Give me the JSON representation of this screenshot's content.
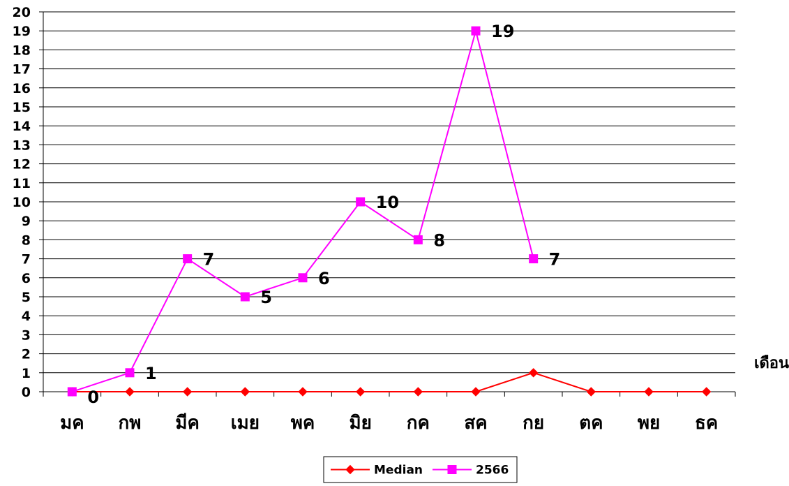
{
  "chart_data": {
    "type": "line",
    "categories": [
      "มค",
      "กพ",
      "มีค",
      "เมย",
      "พค",
      "มิย",
      "กค",
      "สค",
      "กย",
      "ตค",
      "พย",
      "ธค"
    ],
    "series": [
      {
        "name": "Median",
        "values": [
          0,
          0,
          0,
          0,
          0,
          0,
          0,
          0,
          1,
          0,
          0,
          0
        ],
        "color": "#ff0000",
        "marker": "diamond"
      },
      {
        "name": "2566",
        "values": [
          0,
          1,
          7,
          5,
          6,
          10,
          8,
          19,
          7,
          null,
          null,
          null
        ],
        "color": "#ff00ff",
        "marker": "square",
        "data_labels": true
      }
    ],
    "title": "",
    "xlabel": "เดือน",
    "ylabel": "",
    "ylim": [
      0,
      20
    ],
    "ytick_step": 1,
    "grid": true,
    "legend_position": "bottom"
  }
}
